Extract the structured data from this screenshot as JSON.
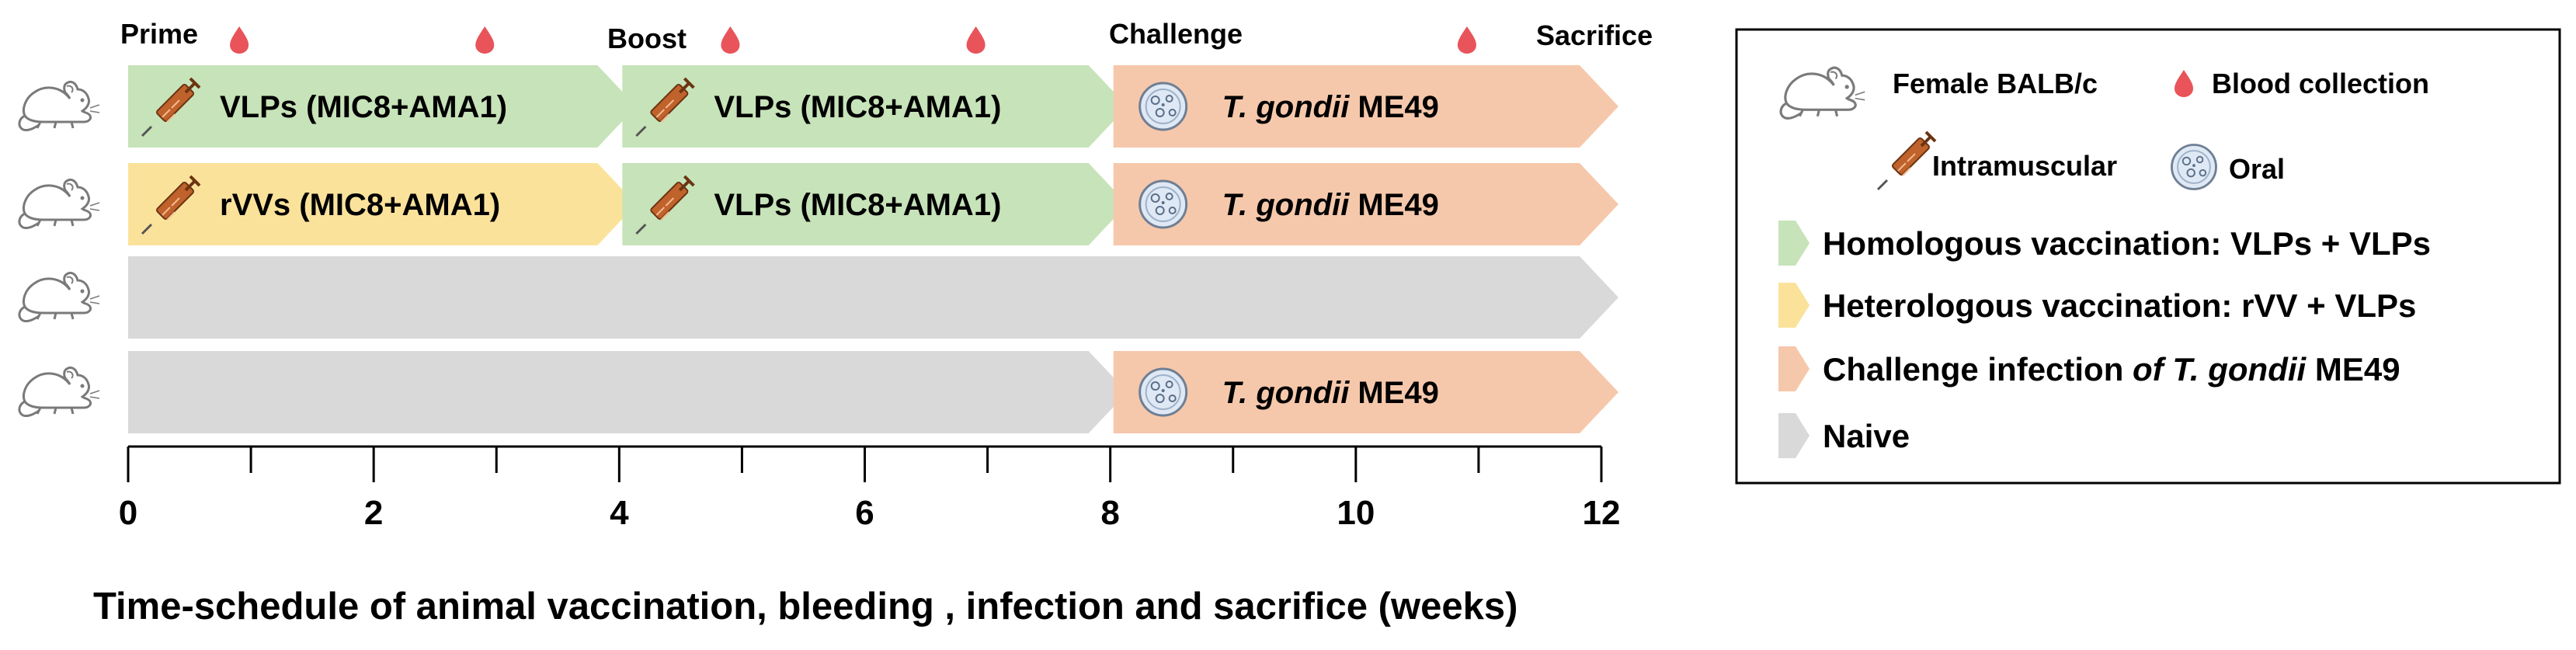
{
  "colors": {
    "homologous": "#c7e3b9",
    "heterologous": "#fbe29b",
    "challenge": "#f6c8ab",
    "naive": "#d9d9d9",
    "blood": "#e8545a",
    "syringe": "#c0622b",
    "oral": "#dfe9f6"
  },
  "milestones": {
    "prime": "Prime",
    "boost": "Boost",
    "challenge": "Challenge",
    "sacrifice": "Sacrifice"
  },
  "rows": [
    {
      "segments": [
        {
          "type": "homologous",
          "start": 0,
          "end": 4,
          "icon": "syringe",
          "label": "VLPs (MIC8+AMA1)"
        },
        {
          "type": "homologous",
          "start": 4,
          "end": 8,
          "icon": "syringe",
          "label": "VLPs (MIC8+AMA1)"
        },
        {
          "type": "challenge",
          "start": 8,
          "end": 12,
          "icon": "oral",
          "label_italic": "T. gondii",
          "label_rest": " ME49"
        }
      ]
    },
    {
      "segments": [
        {
          "type": "heterologous",
          "start": 0,
          "end": 4,
          "icon": "syringe",
          "label": "rVVs (MIC8+AMA1)"
        },
        {
          "type": "homologous",
          "start": 4,
          "end": 8,
          "icon": "syringe",
          "label": "VLPs (MIC8+AMA1)"
        },
        {
          "type": "challenge",
          "start": 8,
          "end": 12,
          "icon": "oral",
          "label_italic": "T. gondii",
          "label_rest": " ME49"
        }
      ]
    },
    {
      "segments": [
        {
          "type": "naive",
          "start": 0,
          "end": 12
        }
      ]
    },
    {
      "segments": [
        {
          "type": "naive",
          "start": 0,
          "end": 8
        },
        {
          "type": "challenge",
          "start": 8,
          "end": 12,
          "icon": "oral",
          "label_italic": "T. gondii",
          "label_rest": " ME49"
        }
      ]
    }
  ],
  "blood_collection_weeks": [
    1,
    3,
    5,
    7,
    11
  ],
  "axis": {
    "min": 0,
    "max": 12,
    "major_ticks": [
      0,
      2,
      4,
      6,
      8,
      10,
      12
    ],
    "minor_ticks": [
      1,
      3,
      5,
      7,
      9,
      11
    ],
    "title": "Time-schedule of animal vaccination, bleeding , infection and sacrifice (weeks)"
  },
  "legend": {
    "mouse": "Female BALB/c",
    "blood": "Blood collection",
    "intramuscular": "Intramuscular",
    "oral": "Oral",
    "homologous": "Homologous  vaccination: VLPs + VLPs",
    "heterologous": "Heterologous vaccination: rVV + VLPs",
    "challenge_pre": "Challenge infection ",
    "challenge_italic": "of T. gondii",
    "challenge_post": " ME49",
    "naive": "Naive"
  }
}
